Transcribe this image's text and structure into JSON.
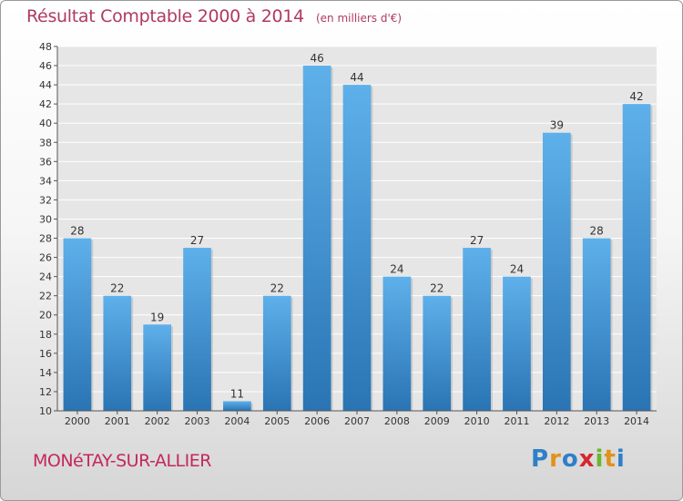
{
  "title": "Résultat Comptable 2000 à 2014",
  "subtitle": "(en milliers d'€)",
  "commune": "MONéTAY-SUR-ALLIER",
  "logo": {
    "letters": [
      "P",
      "r",
      "o",
      "x",
      "i",
      "t",
      "i"
    ],
    "colors": [
      "#2f7fc8",
      "#e0931b",
      "#2f7fc8",
      "#d6272f",
      "#6bb52f",
      "#e0931b",
      "#2f7fc8"
    ]
  },
  "colors": {
    "bar_light": "#5eb0ea",
    "bar_dark": "#2a74b4",
    "title": "#b03a5e",
    "commune": "#c4285a",
    "grid": "#ffffff"
  },
  "chart_data": {
    "type": "bar",
    "title": "Résultat Comptable 2000 à 2014",
    "subtitle": "(en milliers d'€)",
    "categories": [
      "2000",
      "2001",
      "2002",
      "2003",
      "2004",
      "2005",
      "2006",
      "2007",
      "2008",
      "2009",
      "2010",
      "2011",
      "2012",
      "2013",
      "2014"
    ],
    "values": [
      28,
      22,
      19,
      27,
      11,
      22,
      46,
      44,
      24,
      22,
      27,
      24,
      39,
      28,
      42
    ],
    "ylim": [
      10,
      48
    ],
    "yticks": [
      10,
      12,
      14,
      16,
      18,
      20,
      22,
      24,
      26,
      28,
      30,
      32,
      34,
      36,
      38,
      40,
      42,
      44,
      46,
      48
    ],
    "grid": true,
    "data_labels": true
  }
}
